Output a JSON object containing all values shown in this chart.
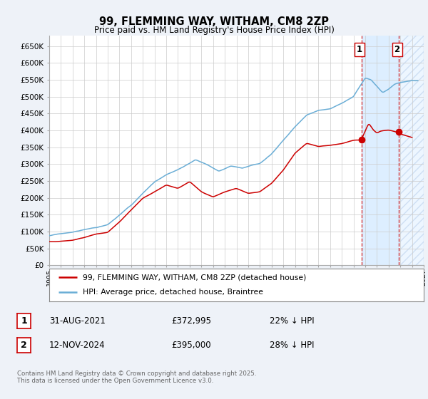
{
  "title": "99, FLEMMING WAY, WITHAM, CM8 2ZP",
  "subtitle": "Price paid vs. HM Land Registry's House Price Index (HPI)",
  "ylim": [
    0,
    680000
  ],
  "yticks": [
    0,
    50000,
    100000,
    150000,
    200000,
    250000,
    300000,
    350000,
    400000,
    450000,
    500000,
    550000,
    600000,
    650000
  ],
  "xlim_start": 1995,
  "xlim_end": 2027,
  "hpi_color": "#6baed6",
  "price_color": "#cc0000",
  "shade_color": "#ddeeff",
  "marker1_date_label": "31-AUG-2021",
  "marker1_price": "£372,995",
  "marker1_hpi_pct": "22% ↓ HPI",
  "marker1_x": 2021.67,
  "marker1_price_val": 372995,
  "marker2_date_label": "12-NOV-2024",
  "marker2_price": "£395,000",
  "marker2_hpi_pct": "28% ↓ HPI",
  "marker2_x": 2024.87,
  "marker2_price_val": 395000,
  "legend_label_red": "99, FLEMMING WAY, WITHAM, CM8 2ZP (detached house)",
  "legend_label_blue": "HPI: Average price, detached house, Braintree",
  "footer": "Contains HM Land Registry data © Crown copyright and database right 2025.\nThis data is licensed under the Open Government Licence v3.0.",
  "background_color": "#eef2f8",
  "plot_bg_color": "#ffffff",
  "grid_color": "#cccccc",
  "hpi_seed": 17,
  "price_seed": 23
}
